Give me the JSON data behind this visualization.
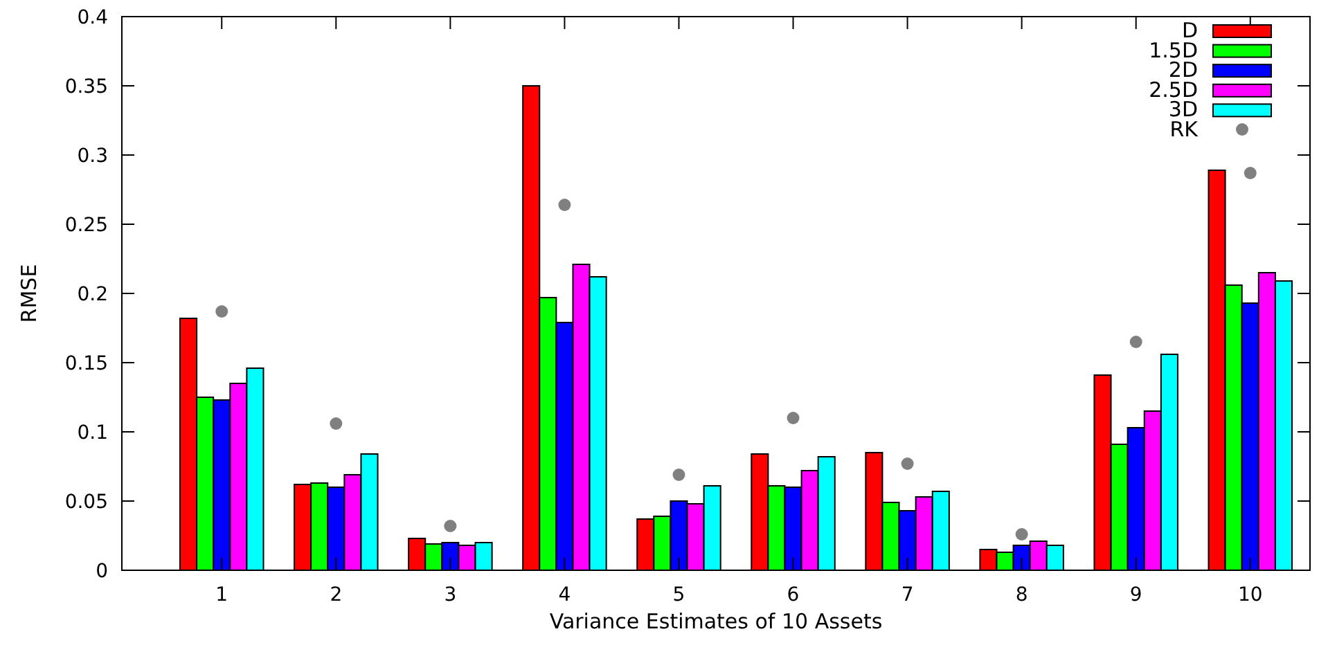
{
  "chart_data": {
    "type": "bar",
    "xlabel": "Variance Estimates of 10 Assets",
    "ylabel": "RMSE",
    "categories": [
      "1",
      "2",
      "3",
      "4",
      "5",
      "6",
      "7",
      "8",
      "9",
      "10"
    ],
    "series": [
      {
        "name": "D",
        "color": "#ff0000",
        "values": [
          0.182,
          0.062,
          0.023,
          0.35,
          0.037,
          0.084,
          0.085,
          0.015,
          0.141,
          0.289
        ]
      },
      {
        "name": "1.5D",
        "color": "#00ff00",
        "values": [
          0.125,
          0.063,
          0.019,
          0.197,
          0.039,
          0.061,
          0.049,
          0.013,
          0.091,
          0.206
        ]
      },
      {
        "name": "2D",
        "color": "#0000ff",
        "values": [
          0.123,
          0.06,
          0.02,
          0.179,
          0.05,
          0.06,
          0.043,
          0.018,
          0.103,
          0.193
        ]
      },
      {
        "name": "2.5D",
        "color": "#ff00ff",
        "values": [
          0.135,
          0.069,
          0.018,
          0.221,
          0.048,
          0.072,
          0.053,
          0.021,
          0.115,
          0.215
        ]
      },
      {
        "name": "3D",
        "color": "#00ffff",
        "values": [
          0.146,
          0.084,
          0.02,
          0.212,
          0.061,
          0.082,
          0.057,
          0.018,
          0.156,
          0.209
        ]
      },
      {
        "name": "RK",
        "type": "scatter",
        "color": "#808080",
        "marker": "circle",
        "x": [
          "1",
          "2",
          "3",
          "4",
          "5",
          "6",
          "7",
          "8",
          "9",
          "10"
        ],
        "values": [
          0.187,
          0.106,
          0.032,
          0.264,
          0.069,
          0.11,
          0.077,
          0.026,
          0.165,
          0.287
        ]
      }
    ],
    "ylim": [
      0,
      0.4
    ],
    "yticks": [
      0,
      0.05,
      0.1,
      0.15,
      0.2,
      0.25,
      0.3,
      0.35,
      0.4
    ],
    "grid": false,
    "legend": "top right"
  }
}
